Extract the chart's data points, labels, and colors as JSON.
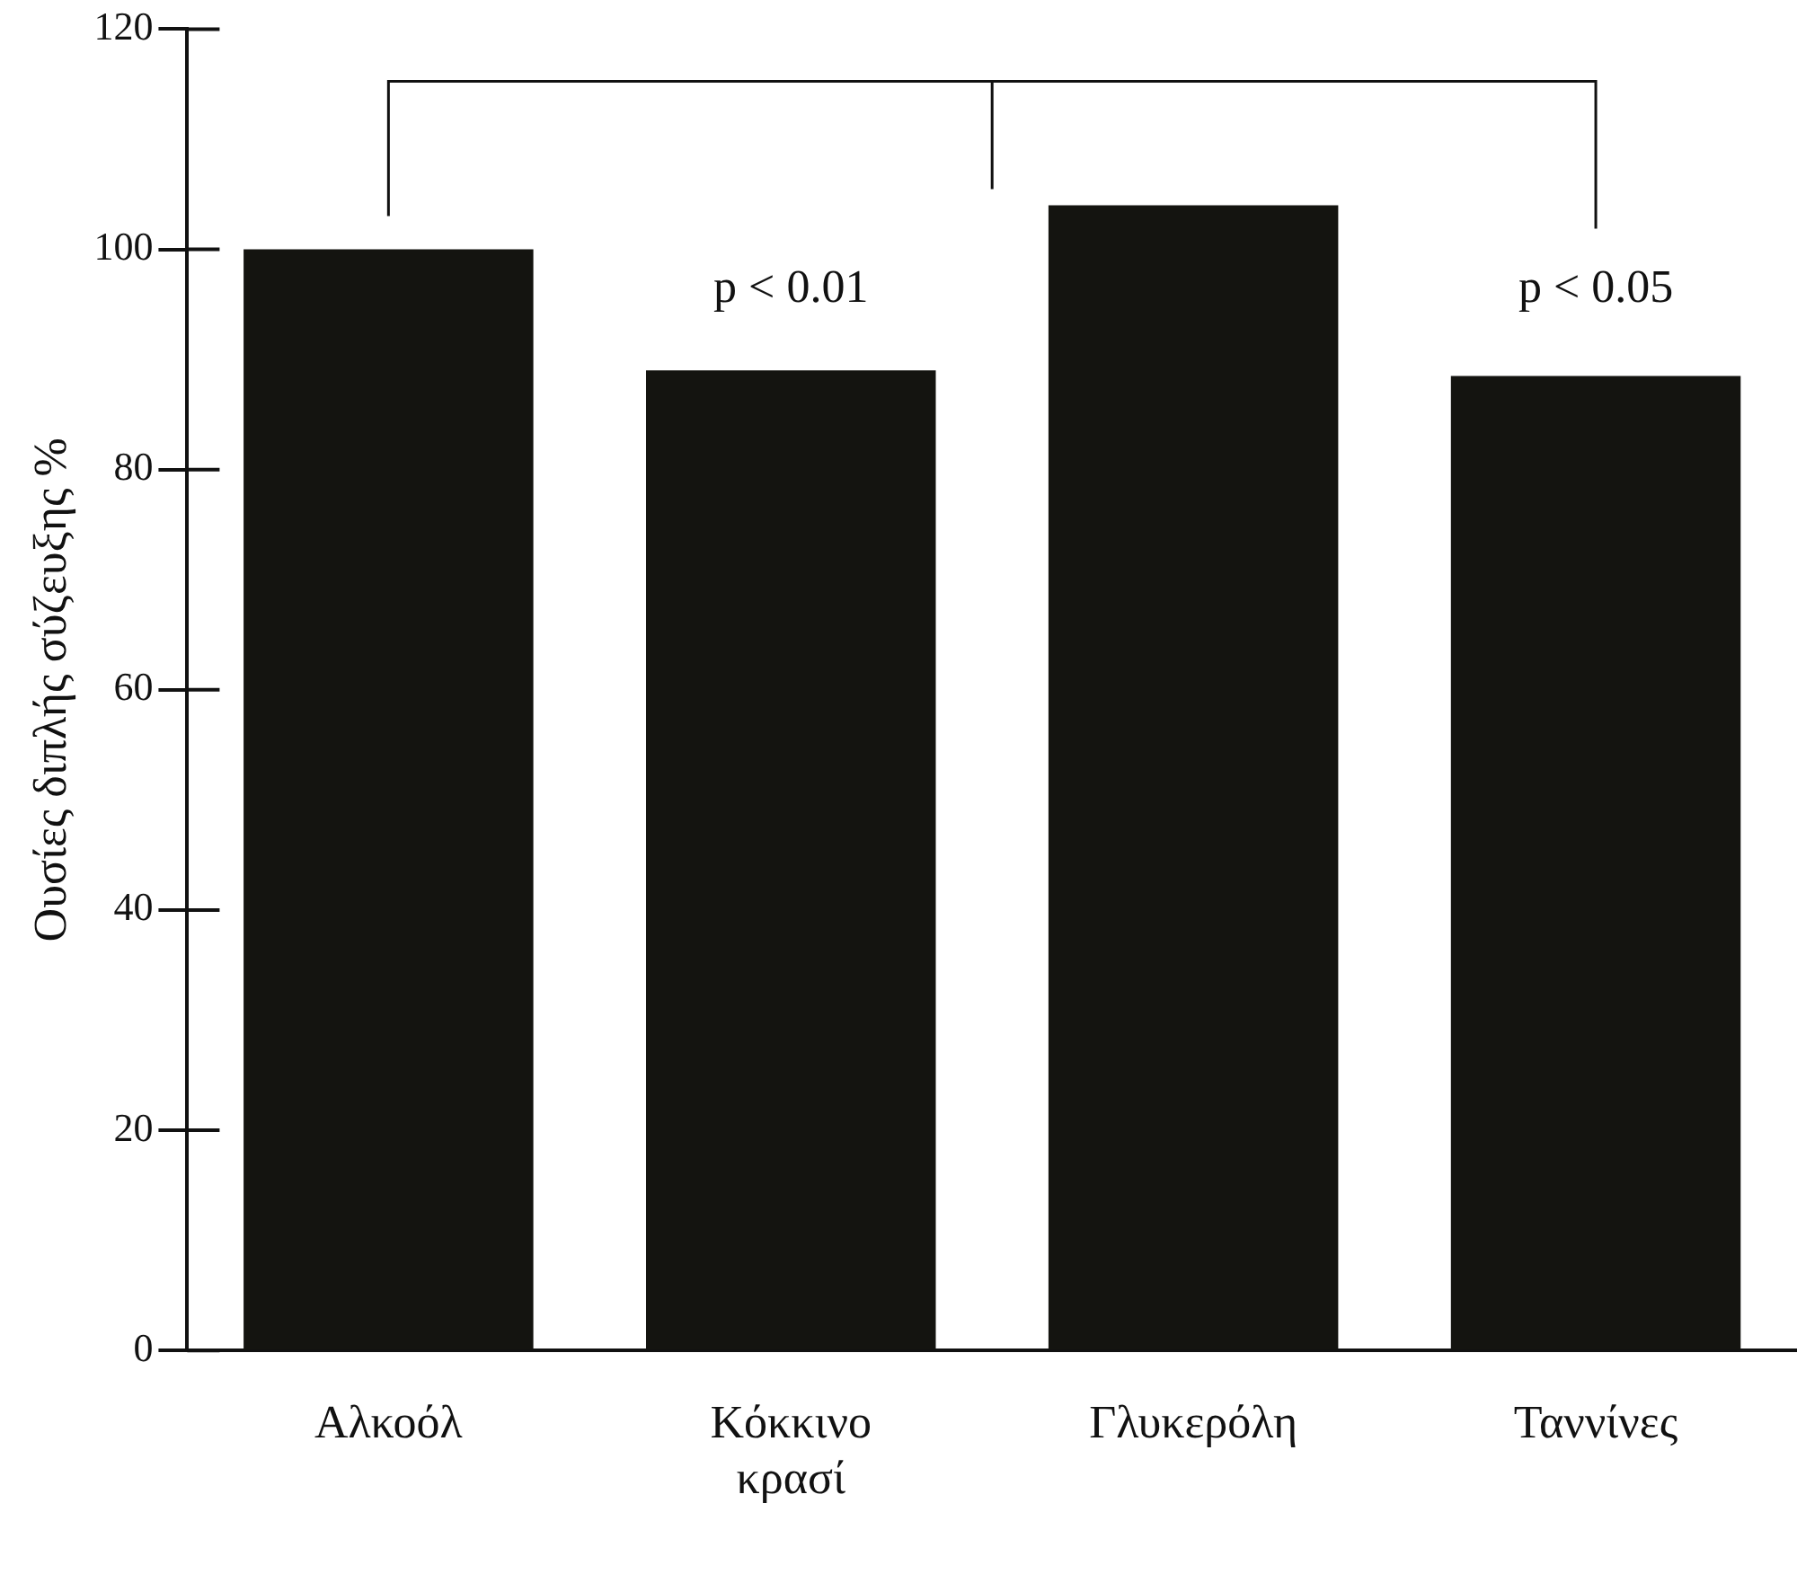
{
  "chart_data": {
    "type": "bar",
    "ylabel": "Ουσίες διπλής σύζευξης %",
    "categories": [
      "Αλκοόλ",
      "Κόκκινο κρασί",
      "Γλυκερόλη",
      "Ταννίνες"
    ],
    "values": [
      100,
      89,
      104,
      88.5
    ],
    "color": "#141410",
    "ylim": [
      0,
      120
    ],
    "yticks": [
      0,
      20,
      40,
      60,
      80,
      100,
      120
    ],
    "annotations": [
      "p < 0.01",
      "p < 0.05"
    ]
  }
}
